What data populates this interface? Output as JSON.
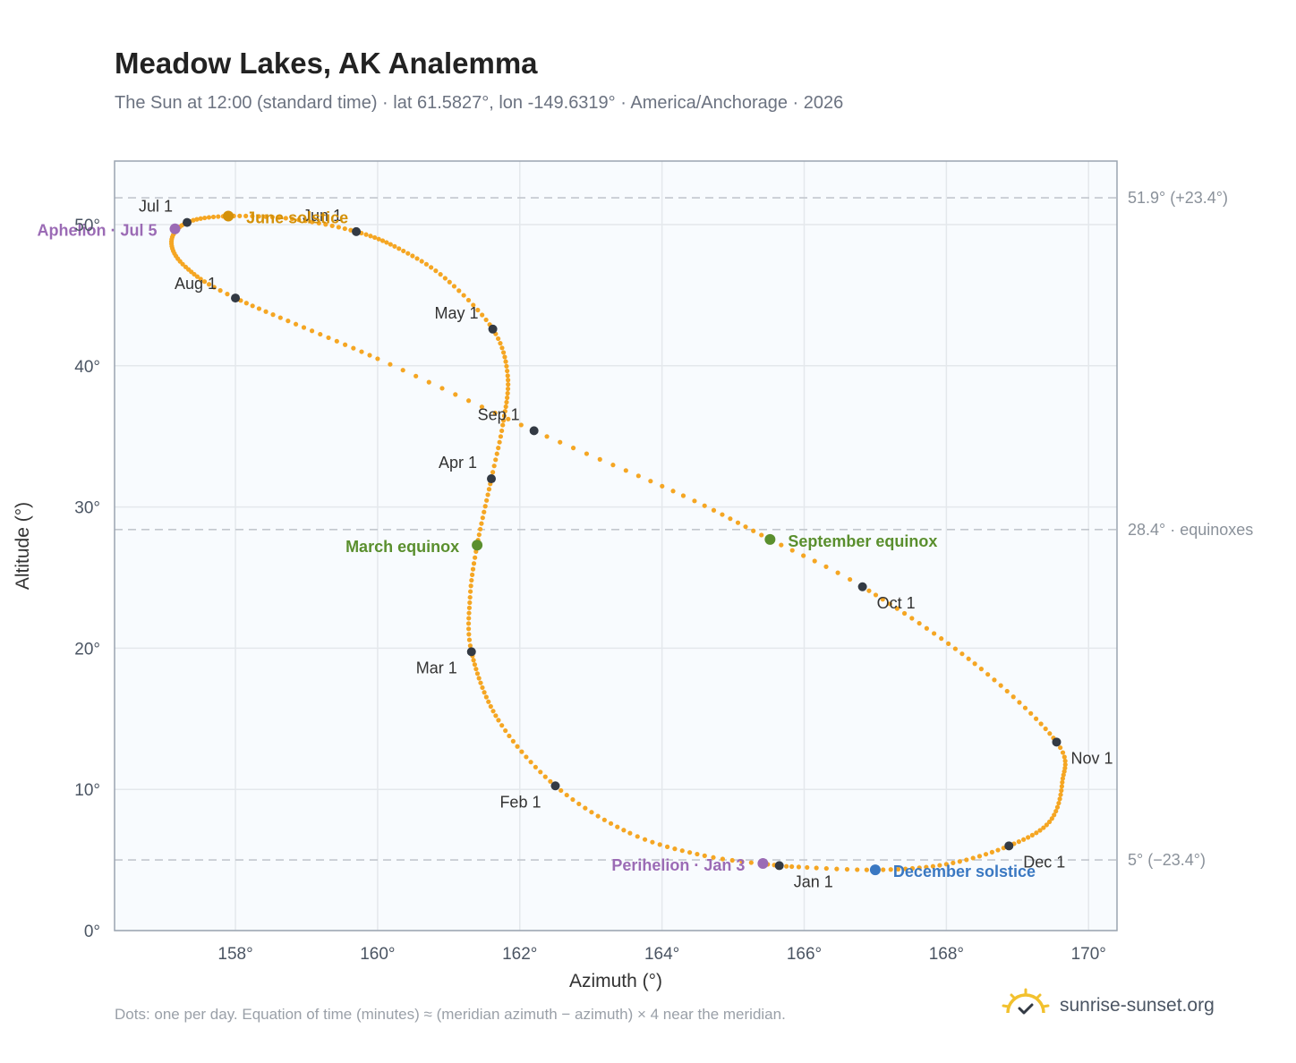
{
  "title": "Meadow Lakes, AK Analemma",
  "subtitle": "The Sun at 12:00 (standard time) · lat 61.5827°, lon -149.6319° · America/Anchorage · 2026",
  "footnote": "Dots: one per day. Equation of time (minutes) ≈ (meridian azimuth − azimuth) × 4 near the meridian.",
  "brand": {
    "text": "sunrise-sunset.org",
    "icon": "sun-check-icon"
  },
  "colors": {
    "path": "#f5a623",
    "month_dot": "#333a44",
    "solstice_june": "#d4910a",
    "solstice_december": "#3a78c2",
    "equinox": "#5a8f2e",
    "apsis": "#9b6bb5",
    "reference_line": "#c3c8ce",
    "plot_bg": "#f8fbfe"
  },
  "chart_data": {
    "type": "scatter",
    "title": "Meadow Lakes, AK Analemma",
    "xlabel": "Azimuth (°)",
    "ylabel": "Altitude (°)",
    "xlim": [
      156.3,
      170.4
    ],
    "ylim": [
      0,
      54.5
    ],
    "xticks": [
      158,
      160,
      162,
      164,
      166,
      168,
      170
    ],
    "yticks": [
      0,
      10,
      20,
      30,
      40,
      50
    ],
    "tick_suffix": "°",
    "grid": true,
    "reference_lines": [
      {
        "y": 51.9,
        "label": "51.9° (+23.4°)"
      },
      {
        "y": 28.4,
        "label": "28.4° · equinoxes"
      },
      {
        "y": 5.0,
        "label": "5° (−23.4°)"
      }
    ],
    "months": [
      {
        "label": "Jan 1",
        "x": 165.65,
        "y": 4.6
      },
      {
        "label": "Feb 1",
        "x": 162.5,
        "y": 10.25
      },
      {
        "label": "Mar 1",
        "x": 161.32,
        "y": 19.75
      },
      {
        "label": "Apr 1",
        "x": 161.6,
        "y": 32.0
      },
      {
        "label": "May 1",
        "x": 161.62,
        "y": 42.6
      },
      {
        "label": "Jun 1",
        "x": 159.7,
        "y": 49.5
      },
      {
        "label": "Jul 1",
        "x": 157.32,
        "y": 50.15
      },
      {
        "label": "Aug 1",
        "x": 158.0,
        "y": 44.8
      },
      {
        "label": "Sep 1",
        "x": 162.2,
        "y": 35.4
      },
      {
        "label": "Oct 1",
        "x": 166.82,
        "y": 24.35
      },
      {
        "label": "Nov 1",
        "x": 169.55,
        "y": 13.35
      },
      {
        "label": "Dec 1",
        "x": 168.88,
        "y": 6.0
      }
    ],
    "events": [
      {
        "label": "June solstice",
        "x": 157.9,
        "y": 50.6,
        "color_key": "solstice_june"
      },
      {
        "label": "December solstice",
        "x": 167.0,
        "y": 4.3,
        "color_key": "solstice_december"
      },
      {
        "label": "March equinox",
        "x": 161.4,
        "y": 27.3,
        "color_key": "equinox"
      },
      {
        "label": "September equinox",
        "x": 165.52,
        "y": 27.7,
        "color_key": "equinox"
      },
      {
        "label": "Aphelion · Jul 5",
        "x": 157.15,
        "y": 49.7,
        "color_key": "apsis"
      },
      {
        "label": "Perihelion · Jan 3",
        "x": 165.42,
        "y": 4.75,
        "color_key": "apsis"
      }
    ],
    "path": [
      {
        "doy": 1,
        "x": 165.65,
        "y": 4.6
      },
      {
        "doy": 10,
        "x": 164.6,
        "y": 5.3
      },
      {
        "doy": 20,
        "x": 163.55,
        "y": 6.9
      },
      {
        "doy": 32,
        "x": 162.5,
        "y": 10.25
      },
      {
        "doy": 45,
        "x": 161.7,
        "y": 14.9
      },
      {
        "doy": 60,
        "x": 161.32,
        "y": 19.75
      },
      {
        "doy": 70,
        "x": 161.3,
        "y": 23.6
      },
      {
        "doy": 79,
        "x": 161.4,
        "y": 27.3
      },
      {
        "doy": 91,
        "x": 161.6,
        "y": 32.0
      },
      {
        "doy": 100,
        "x": 161.76,
        "y": 35.8
      },
      {
        "doy": 111,
        "x": 161.83,
        "y": 39.3
      },
      {
        "doy": 121,
        "x": 161.62,
        "y": 42.6
      },
      {
        "doy": 132,
        "x": 160.95,
        "y": 46.2
      },
      {
        "doy": 142,
        "x": 160.3,
        "y": 48.3
      },
      {
        "doy": 152,
        "x": 159.7,
        "y": 49.5
      },
      {
        "doy": 162,
        "x": 158.8,
        "y": 50.4
      },
      {
        "doy": 172,
        "x": 157.9,
        "y": 50.6
      },
      {
        "doy": 182,
        "x": 157.32,
        "y": 50.15
      },
      {
        "doy": 192,
        "x": 157.1,
        "y": 48.8
      },
      {
        "doy": 202,
        "x": 157.3,
        "y": 47.0
      },
      {
        "doy": 213,
        "x": 158.0,
        "y": 44.8
      },
      {
        "doy": 232,
        "x": 160.0,
        "y": 40.5
      },
      {
        "doy": 244,
        "x": 162.2,
        "y": 35.4
      },
      {
        "doy": 256,
        "x": 164.3,
        "y": 30.8
      },
      {
        "doy": 266,
        "x": 165.52,
        "y": 27.7
      },
      {
        "doy": 274,
        "x": 166.82,
        "y": 24.35
      },
      {
        "doy": 290,
        "x": 168.4,
        "y": 18.9
      },
      {
        "doy": 305,
        "x": 169.55,
        "y": 13.35
      },
      {
        "doy": 315,
        "x": 169.63,
        "y": 10.5
      },
      {
        "doy": 325,
        "x": 169.45,
        "y": 7.7
      },
      {
        "doy": 335,
        "x": 168.88,
        "y": 6.0
      },
      {
        "doy": 345,
        "x": 168.0,
        "y": 4.7
      },
      {
        "doy": 355,
        "x": 167.0,
        "y": 4.3
      },
      {
        "doy": 365,
        "x": 165.75,
        "y": 4.55
      }
    ]
  }
}
